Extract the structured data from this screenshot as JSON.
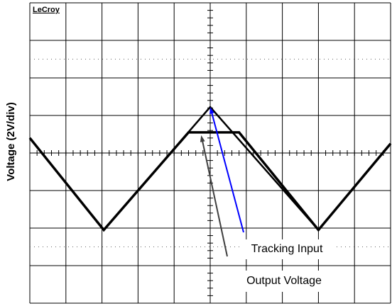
{
  "chart_data": {
    "type": "line",
    "ylabel": "Voltage (2V/div)",
    "brand": "LeCroy",
    "xlim": [
      -5,
      5
    ],
    "ylim": [
      -8,
      8
    ],
    "xticks": [
      -5,
      -4,
      -3,
      -2,
      -1,
      0,
      1,
      2,
      3,
      4,
      5
    ],
    "yticks": [
      -8,
      -6,
      -4,
      -2,
      0,
      2,
      4,
      6,
      8
    ],
    "grid": true,
    "series": [
      {
        "name": "Tracking Input",
        "color": "#0000ff",
        "x": [
          -5,
          -2.95,
          0,
          3,
          5
        ],
        "values": [
          0.8,
          -4.1,
          2.45,
          -4.1,
          0.5
        ]
      },
      {
        "name": "Output Voltage",
        "color": "#404040",
        "x": [
          -5,
          -2.95,
          -0.6,
          0.8,
          3,
          5
        ],
        "values": [
          0.8,
          -4.1,
          1.1,
          1.1,
          -4.1,
          0.5
        ]
      }
    ]
  }
}
